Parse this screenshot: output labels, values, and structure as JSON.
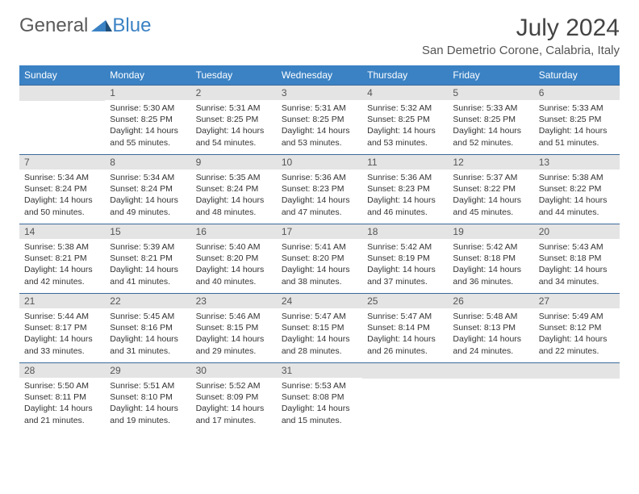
{
  "logo": {
    "part1": "General",
    "part2": "Blue"
  },
  "title": "July 2024",
  "location": "San Demetrio Corone, Calabria, Italy",
  "colors": {
    "header_bg": "#3b82c4",
    "header_text": "#ffffff",
    "daynum_bg": "#e4e4e4",
    "border": "#3b6a9a",
    "logo_gray": "#5a5a5a",
    "logo_blue": "#3b82c4"
  },
  "weekdays": [
    "Sunday",
    "Monday",
    "Tuesday",
    "Wednesday",
    "Thursday",
    "Friday",
    "Saturday"
  ],
  "weeks": [
    [
      null,
      {
        "d": "1",
        "sr": "5:30 AM",
        "ss": "8:25 PM",
        "dl": "14 hours and 55 minutes."
      },
      {
        "d": "2",
        "sr": "5:31 AM",
        "ss": "8:25 PM",
        "dl": "14 hours and 54 minutes."
      },
      {
        "d": "3",
        "sr": "5:31 AM",
        "ss": "8:25 PM",
        "dl": "14 hours and 53 minutes."
      },
      {
        "d": "4",
        "sr": "5:32 AM",
        "ss": "8:25 PM",
        "dl": "14 hours and 53 minutes."
      },
      {
        "d": "5",
        "sr": "5:33 AM",
        "ss": "8:25 PM",
        "dl": "14 hours and 52 minutes."
      },
      {
        "d": "6",
        "sr": "5:33 AM",
        "ss": "8:25 PM",
        "dl": "14 hours and 51 minutes."
      }
    ],
    [
      {
        "d": "7",
        "sr": "5:34 AM",
        "ss": "8:24 PM",
        "dl": "14 hours and 50 minutes."
      },
      {
        "d": "8",
        "sr": "5:34 AM",
        "ss": "8:24 PM",
        "dl": "14 hours and 49 minutes."
      },
      {
        "d": "9",
        "sr": "5:35 AM",
        "ss": "8:24 PM",
        "dl": "14 hours and 48 minutes."
      },
      {
        "d": "10",
        "sr": "5:36 AM",
        "ss": "8:23 PM",
        "dl": "14 hours and 47 minutes."
      },
      {
        "d": "11",
        "sr": "5:36 AM",
        "ss": "8:23 PM",
        "dl": "14 hours and 46 minutes."
      },
      {
        "d": "12",
        "sr": "5:37 AM",
        "ss": "8:22 PM",
        "dl": "14 hours and 45 minutes."
      },
      {
        "d": "13",
        "sr": "5:38 AM",
        "ss": "8:22 PM",
        "dl": "14 hours and 44 minutes."
      }
    ],
    [
      {
        "d": "14",
        "sr": "5:38 AM",
        "ss": "8:21 PM",
        "dl": "14 hours and 42 minutes."
      },
      {
        "d": "15",
        "sr": "5:39 AM",
        "ss": "8:21 PM",
        "dl": "14 hours and 41 minutes."
      },
      {
        "d": "16",
        "sr": "5:40 AM",
        "ss": "8:20 PM",
        "dl": "14 hours and 40 minutes."
      },
      {
        "d": "17",
        "sr": "5:41 AM",
        "ss": "8:20 PM",
        "dl": "14 hours and 38 minutes."
      },
      {
        "d": "18",
        "sr": "5:42 AM",
        "ss": "8:19 PM",
        "dl": "14 hours and 37 minutes."
      },
      {
        "d": "19",
        "sr": "5:42 AM",
        "ss": "8:18 PM",
        "dl": "14 hours and 36 minutes."
      },
      {
        "d": "20",
        "sr": "5:43 AM",
        "ss": "8:18 PM",
        "dl": "14 hours and 34 minutes."
      }
    ],
    [
      {
        "d": "21",
        "sr": "5:44 AM",
        "ss": "8:17 PM",
        "dl": "14 hours and 33 minutes."
      },
      {
        "d": "22",
        "sr": "5:45 AM",
        "ss": "8:16 PM",
        "dl": "14 hours and 31 minutes."
      },
      {
        "d": "23",
        "sr": "5:46 AM",
        "ss": "8:15 PM",
        "dl": "14 hours and 29 minutes."
      },
      {
        "d": "24",
        "sr": "5:47 AM",
        "ss": "8:15 PM",
        "dl": "14 hours and 28 minutes."
      },
      {
        "d": "25",
        "sr": "5:47 AM",
        "ss": "8:14 PM",
        "dl": "14 hours and 26 minutes."
      },
      {
        "d": "26",
        "sr": "5:48 AM",
        "ss": "8:13 PM",
        "dl": "14 hours and 24 minutes."
      },
      {
        "d": "27",
        "sr": "5:49 AM",
        "ss": "8:12 PM",
        "dl": "14 hours and 22 minutes."
      }
    ],
    [
      {
        "d": "28",
        "sr": "5:50 AM",
        "ss": "8:11 PM",
        "dl": "14 hours and 21 minutes."
      },
      {
        "d": "29",
        "sr": "5:51 AM",
        "ss": "8:10 PM",
        "dl": "14 hours and 19 minutes."
      },
      {
        "d": "30",
        "sr": "5:52 AM",
        "ss": "8:09 PM",
        "dl": "14 hours and 17 minutes."
      },
      {
        "d": "31",
        "sr": "5:53 AM",
        "ss": "8:08 PM",
        "dl": "14 hours and 15 minutes."
      },
      null,
      null,
      null
    ]
  ],
  "labels": {
    "sunrise": "Sunrise:",
    "sunset": "Sunset:",
    "daylight": "Daylight:"
  }
}
